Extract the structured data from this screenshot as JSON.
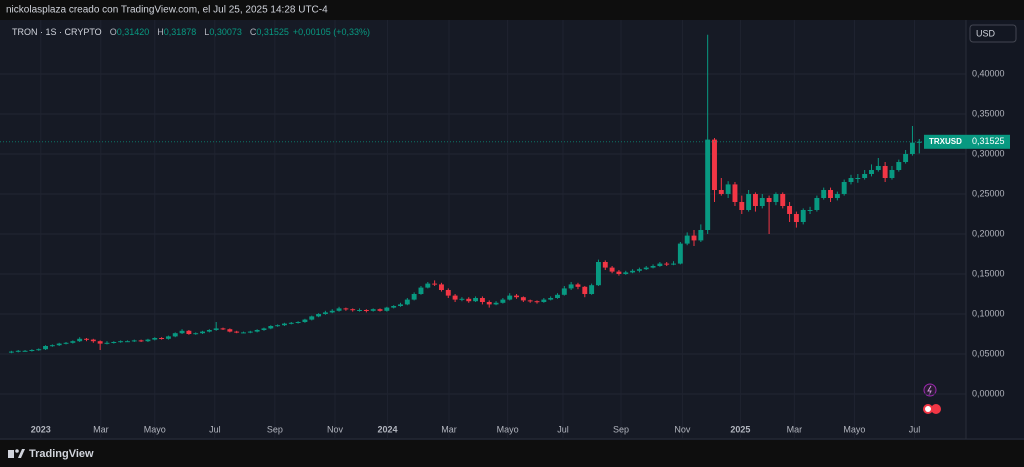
{
  "header": {
    "credit": "nickolasplaza creado con TradingView.com, el Jul 25, 2025 14:28 UTC-4"
  },
  "footer": {
    "brand": "TradingView"
  },
  "chart_data": {
    "type": "candlestick",
    "title": "TRON · 1S · CRYPTO",
    "legend": [
      {
        "key": "O",
        "value": "0,31420"
      },
      {
        "key": "H",
        "value": "0,31878"
      },
      {
        "key": "L",
        "value": "0,30073"
      },
      {
        "key": "C",
        "value": "0,31525"
      }
    ],
    "change": "+0,00105 (+0,33%)",
    "currency": "USD",
    "symbol": "TRXUSD",
    "last_label": "0,31525",
    "up_color": "#089981",
    "down_color": "#f23645",
    "grid": true,
    "candles": [
      [
        0.052,
        0.054,
        0.051,
        0.053
      ],
      [
        0.053,
        0.055,
        0.052,
        0.054
      ],
      [
        0.054,
        0.055,
        0.053,
        0.054
      ],
      [
        0.054,
        0.056,
        0.053,
        0.055
      ],
      [
        0.055,
        0.057,
        0.054,
        0.056
      ],
      [
        0.056,
        0.061,
        0.055,
        0.06
      ],
      [
        0.06,
        0.062,
        0.059,
        0.061
      ],
      [
        0.061,
        0.064,
        0.06,
        0.063
      ],
      [
        0.063,
        0.065,
        0.062,
        0.064
      ],
      [
        0.064,
        0.067,
        0.063,
        0.066
      ],
      [
        0.066,
        0.071,
        0.065,
        0.069
      ],
      [
        0.069,
        0.07,
        0.066,
        0.068
      ],
      [
        0.068,
        0.069,
        0.064,
        0.066
      ],
      [
        0.066,
        0.067,
        0.055,
        0.063
      ],
      [
        0.063,
        0.066,
        0.062,
        0.064
      ],
      [
        0.064,
        0.066,
        0.063,
        0.065
      ],
      [
        0.065,
        0.067,
        0.064,
        0.066
      ],
      [
        0.066,
        0.067,
        0.065,
        0.066
      ],
      [
        0.066,
        0.068,
        0.065,
        0.067
      ],
      [
        0.067,
        0.068,
        0.065,
        0.066
      ],
      [
        0.066,
        0.069,
        0.065,
        0.068
      ],
      [
        0.068,
        0.071,
        0.067,
        0.07
      ],
      [
        0.07,
        0.071,
        0.068,
        0.069
      ],
      [
        0.069,
        0.073,
        0.068,
        0.072
      ],
      [
        0.072,
        0.077,
        0.071,
        0.076
      ],
      [
        0.076,
        0.081,
        0.075,
        0.079
      ],
      [
        0.079,
        0.08,
        0.074,
        0.075
      ],
      [
        0.075,
        0.077,
        0.074,
        0.076
      ],
      [
        0.076,
        0.079,
        0.075,
        0.078
      ],
      [
        0.078,
        0.081,
        0.077,
        0.08
      ],
      [
        0.08,
        0.09,
        0.079,
        0.082
      ],
      [
        0.082,
        0.083,
        0.08,
        0.081
      ],
      [
        0.081,
        0.082,
        0.077,
        0.078
      ],
      [
        0.078,
        0.079,
        0.076,
        0.077
      ],
      [
        0.077,
        0.078,
        0.076,
        0.077
      ],
      [
        0.077,
        0.079,
        0.076,
        0.078
      ],
      [
        0.078,
        0.081,
        0.077,
        0.08
      ],
      [
        0.08,
        0.083,
        0.079,
        0.082
      ],
      [
        0.082,
        0.086,
        0.081,
        0.085
      ],
      [
        0.085,
        0.087,
        0.084,
        0.086
      ],
      [
        0.086,
        0.089,
        0.085,
        0.088
      ],
      [
        0.088,
        0.09,
        0.087,
        0.089
      ],
      [
        0.089,
        0.091,
        0.088,
        0.09
      ],
      [
        0.09,
        0.094,
        0.089,
        0.093
      ],
      [
        0.093,
        0.098,
        0.092,
        0.097
      ],
      [
        0.097,
        0.101,
        0.096,
        0.1
      ],
      [
        0.1,
        0.104,
        0.099,
        0.102
      ],
      [
        0.102,
        0.106,
        0.101,
        0.104
      ],
      [
        0.104,
        0.109,
        0.103,
        0.107
      ],
      [
        0.107,
        0.108,
        0.104,
        0.106
      ],
      [
        0.106,
        0.107,
        0.103,
        0.105
      ],
      [
        0.105,
        0.107,
        0.103,
        0.105
      ],
      [
        0.105,
        0.106,
        0.102,
        0.104
      ],
      [
        0.104,
        0.107,
        0.103,
        0.106
      ],
      [
        0.106,
        0.107,
        0.103,
        0.104
      ],
      [
        0.104,
        0.109,
        0.103,
        0.108
      ],
      [
        0.108,
        0.111,
        0.107,
        0.11
      ],
      [
        0.11,
        0.114,
        0.109,
        0.112
      ],
      [
        0.112,
        0.12,
        0.111,
        0.118
      ],
      [
        0.118,
        0.127,
        0.117,
        0.125
      ],
      [
        0.125,
        0.135,
        0.124,
        0.133
      ],
      [
        0.133,
        0.14,
        0.132,
        0.138
      ],
      [
        0.138,
        0.142,
        0.135,
        0.137
      ],
      [
        0.137,
        0.139,
        0.128,
        0.13
      ],
      [
        0.13,
        0.132,
        0.12,
        0.123
      ],
      [
        0.123,
        0.125,
        0.115,
        0.118
      ],
      [
        0.118,
        0.121,
        0.116,
        0.119
      ],
      [
        0.119,
        0.121,
        0.114,
        0.116
      ],
      [
        0.116,
        0.122,
        0.115,
        0.12
      ],
      [
        0.12,
        0.122,
        0.112,
        0.115
      ],
      [
        0.115,
        0.117,
        0.108,
        0.112
      ],
      [
        0.112,
        0.116,
        0.111,
        0.114
      ],
      [
        0.114,
        0.12,
        0.113,
        0.118
      ],
      [
        0.118,
        0.126,
        0.117,
        0.123
      ],
      [
        0.123,
        0.125,
        0.119,
        0.121
      ],
      [
        0.121,
        0.122,
        0.115,
        0.117
      ],
      [
        0.117,
        0.118,
        0.114,
        0.116
      ],
      [
        0.116,
        0.117,
        0.113,
        0.115
      ],
      [
        0.115,
        0.12,
        0.114,
        0.118
      ],
      [
        0.118,
        0.122,
        0.117,
        0.12
      ],
      [
        0.12,
        0.126,
        0.119,
        0.124
      ],
      [
        0.124,
        0.135,
        0.123,
        0.132
      ],
      [
        0.132,
        0.14,
        0.13,
        0.137
      ],
      [
        0.137,
        0.139,
        0.131,
        0.134
      ],
      [
        0.134,
        0.135,
        0.121,
        0.125
      ],
      [
        0.125,
        0.138,
        0.124,
        0.136
      ],
      [
        0.136,
        0.168,
        0.135,
        0.165
      ],
      [
        0.165,
        0.167,
        0.155,
        0.158
      ],
      [
        0.158,
        0.16,
        0.151,
        0.153
      ],
      [
        0.153,
        0.155,
        0.148,
        0.15
      ],
      [
        0.15,
        0.154,
        0.149,
        0.152
      ],
      [
        0.152,
        0.156,
        0.151,
        0.154
      ],
      [
        0.154,
        0.158,
        0.152,
        0.156
      ],
      [
        0.156,
        0.16,
        0.155,
        0.158
      ],
      [
        0.158,
        0.162,
        0.157,
        0.16
      ],
      [
        0.16,
        0.165,
        0.159,
        0.163
      ],
      [
        0.163,
        0.165,
        0.16,
        0.162
      ],
      [
        0.162,
        0.166,
        0.161,
        0.163
      ],
      [
        0.163,
        0.19,
        0.162,
        0.188
      ],
      [
        0.188,
        0.202,
        0.186,
        0.198
      ],
      [
        0.198,
        0.205,
        0.185,
        0.192
      ],
      [
        0.192,
        0.212,
        0.19,
        0.205
      ],
      [
        0.205,
        0.449,
        0.2,
        0.318
      ],
      [
        0.318,
        0.32,
        0.24,
        0.255
      ],
      [
        0.255,
        0.27,
        0.248,
        0.25
      ],
      [
        0.25,
        0.266,
        0.245,
        0.262
      ],
      [
        0.262,
        0.265,
        0.235,
        0.24
      ],
      [
        0.24,
        0.248,
        0.225,
        0.23
      ],
      [
        0.23,
        0.255,
        0.228,
        0.25
      ],
      [
        0.25,
        0.252,
        0.228,
        0.235
      ],
      [
        0.235,
        0.25,
        0.232,
        0.245
      ],
      [
        0.245,
        0.248,
        0.2,
        0.24
      ],
      [
        0.24,
        0.252,
        0.236,
        0.25
      ],
      [
        0.25,
        0.252,
        0.232,
        0.235
      ],
      [
        0.235,
        0.24,
        0.215,
        0.225
      ],
      [
        0.225,
        0.228,
        0.208,
        0.215
      ],
      [
        0.215,
        0.232,
        0.212,
        0.23
      ],
      [
        0.23,
        0.234,
        0.225,
        0.23
      ],
      [
        0.23,
        0.248,
        0.228,
        0.245
      ],
      [
        0.245,
        0.258,
        0.243,
        0.255
      ],
      [
        0.255,
        0.258,
        0.24,
        0.245
      ],
      [
        0.245,
        0.253,
        0.242,
        0.25
      ],
      [
        0.25,
        0.268,
        0.248,
        0.265
      ],
      [
        0.265,
        0.274,
        0.262,
        0.27
      ],
      [
        0.27,
        0.275,
        0.264,
        0.27
      ],
      [
        0.27,
        0.28,
        0.268,
        0.275
      ],
      [
        0.275,
        0.287,
        0.272,
        0.28
      ],
      [
        0.28,
        0.295,
        0.278,
        0.285
      ],
      [
        0.285,
        0.29,
        0.265,
        0.27
      ],
      [
        0.27,
        0.285,
        0.268,
        0.28
      ],
      [
        0.28,
        0.293,
        0.278,
        0.29
      ],
      [
        0.29,
        0.305,
        0.288,
        0.3
      ],
      [
        0.3,
        0.335,
        0.298,
        0.3142
      ],
      [
        0.3142,
        0.31878,
        0.30073,
        0.31525
      ]
    ],
    "xlim": [
      -0.5,
      139.7
    ],
    "xticks": [
      {
        "value": 4.3,
        "label": "2023"
      },
      {
        "value": 13.1,
        "label": "Mar"
      },
      {
        "value": 21.0,
        "label": "Mayo"
      },
      {
        "value": 29.8,
        "label": "Jul"
      },
      {
        "value": 38.6,
        "label": "Sep"
      },
      {
        "value": 47.4,
        "label": "Nov"
      },
      {
        "value": 55.1,
        "label": "2024"
      },
      {
        "value": 64.1,
        "label": "Mar"
      },
      {
        "value": 72.7,
        "label": "Mayo"
      },
      {
        "value": 80.8,
        "label": "Jul"
      },
      {
        "value": 89.3,
        "label": "Sep"
      },
      {
        "value": 98.3,
        "label": "Nov"
      },
      {
        "value": 106.8,
        "label": "2025"
      },
      {
        "value": 114.7,
        "label": "Mar"
      },
      {
        "value": 123.5,
        "label": "Mayo"
      },
      {
        "value": 132.3,
        "label": "Jul"
      }
    ],
    "ylim": [
      -0.0325,
      0.4575
    ],
    "yticks": [
      {
        "value": 0,
        "label": "0,00000"
      },
      {
        "value": 0.05,
        "label": "0,05000"
      },
      {
        "value": 0.1,
        "label": "0,10000"
      },
      {
        "value": 0.15,
        "label": "0,15000"
      },
      {
        "value": 0.2,
        "label": "0,20000"
      },
      {
        "value": 0.25,
        "label": "0,25000"
      },
      {
        "value": 0.3,
        "label": "0,30000"
      },
      {
        "value": 0.35,
        "label": "0,35000"
      },
      {
        "value": 0.4,
        "label": "0,40000"
      }
    ]
  }
}
